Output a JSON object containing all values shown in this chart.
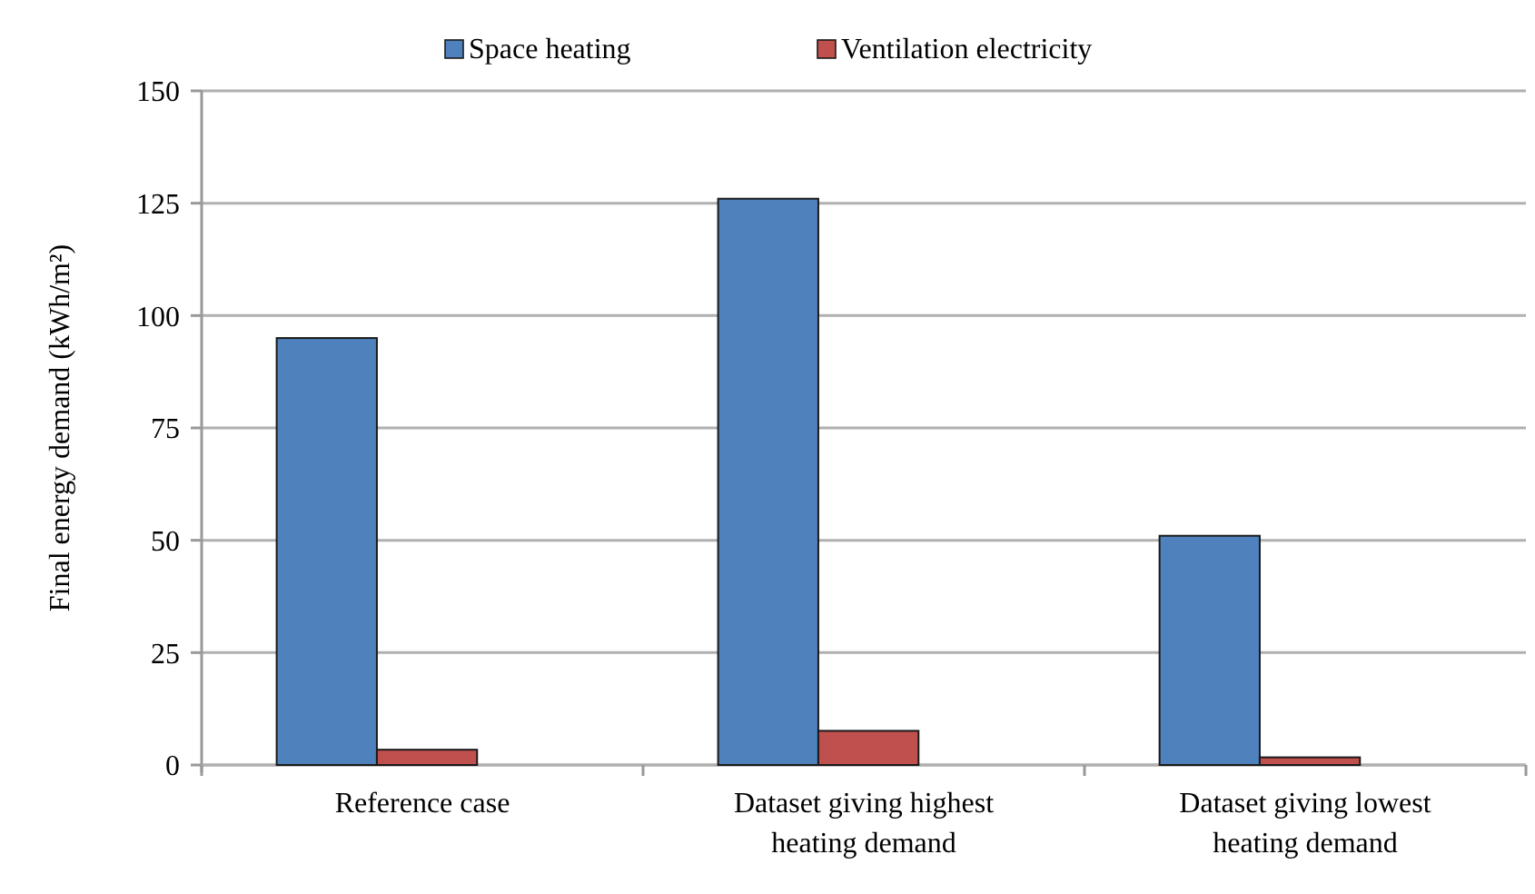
{
  "chart_data": {
    "type": "bar",
    "ylabel": "Final energy demand (kWh/m²)",
    "categories": [
      "Reference case",
      "Dataset giving highest heating demand",
      "Dataset giving lowest heating demand"
    ],
    "series": [
      {
        "name": "Space heating",
        "color": "#4f81bd",
        "values": [
          95,
          126,
          51
        ]
      },
      {
        "name": "Ventilation electricity",
        "color": "#c0504d",
        "values": [
          3.4,
          7.6,
          1.7
        ]
      }
    ],
    "ylim": [
      0,
      150
    ],
    "yticks": [
      0,
      25,
      50,
      75,
      100,
      125,
      150
    ],
    "grid": "y",
    "legend": "top"
  }
}
